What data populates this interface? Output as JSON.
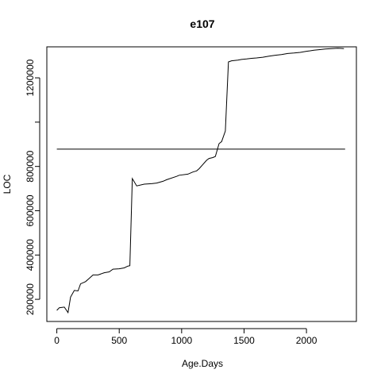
{
  "chart_data": {
    "type": "line",
    "title": "e107",
    "xlabel": "Age.Days",
    "ylabel": "LOC",
    "xlim": [
      -80,
      2400
    ],
    "ylim": [
      100000,
      1340000
    ],
    "grid": false,
    "x_ticks": [
      0,
      500,
      1000,
      1500,
      2000
    ],
    "x_tick_labels": [
      "0",
      "500",
      "1000",
      "1500",
      "2000"
    ],
    "y_ticks": [
      200000,
      400000,
      600000,
      800000,
      1000000,
      1200000
    ],
    "y_tick_labels": [
      "200000",
      "400000",
      "600000",
      "800000",
      "",
      "1200000"
    ],
    "series": [
      {
        "x": [
          0,
          20,
          60,
          90,
          110,
          140,
          170,
          190,
          230,
          260,
          290,
          330,
          380,
          420,
          450,
          500,
          540,
          570,
          585,
          605,
          640,
          700,
          760,
          800,
          850,
          880,
          960,
          980,
          1050,
          1090,
          1120,
          1140,
          1200,
          1220,
          1250,
          1270,
          1300,
          1320,
          1350,
          1375,
          1400,
          1450,
          1480,
          1520,
          1560,
          1600,
          1650,
          1700,
          1750,
          1800,
          1850,
          1900,
          1950,
          2000,
          2030,
          2060,
          2100,
          2150,
          2200,
          2250,
          2280,
          2300
        ],
        "y": [
          150000,
          162000,
          165000,
          140000,
          210000,
          240000,
          238000,
          270000,
          280000,
          295000,
          310000,
          310000,
          320000,
          324000,
          336000,
          338000,
          342000,
          350000,
          352000,
          745000,
          712000,
          720000,
          722000,
          725000,
          733000,
          740000,
          755000,
          760000,
          765000,
          775000,
          780000,
          790000,
          828000,
          836000,
          840000,
          845000,
          903000,
          912000,
          960000,
          1272000,
          1277000,
          1280000,
          1283000,
          1285000,
          1288000,
          1290000,
          1293000,
          1298000,
          1302000,
          1305000,
          1310000,
          1312000,
          1315000,
          1320000,
          1322000,
          1325000,
          1327000,
          1330000,
          1332000,
          1334000,
          1333000,
          1332000
        ]
      },
      {
        "x": [
          0,
          2310
        ],
        "y": [
          878000,
          878000
        ]
      }
    ]
  }
}
